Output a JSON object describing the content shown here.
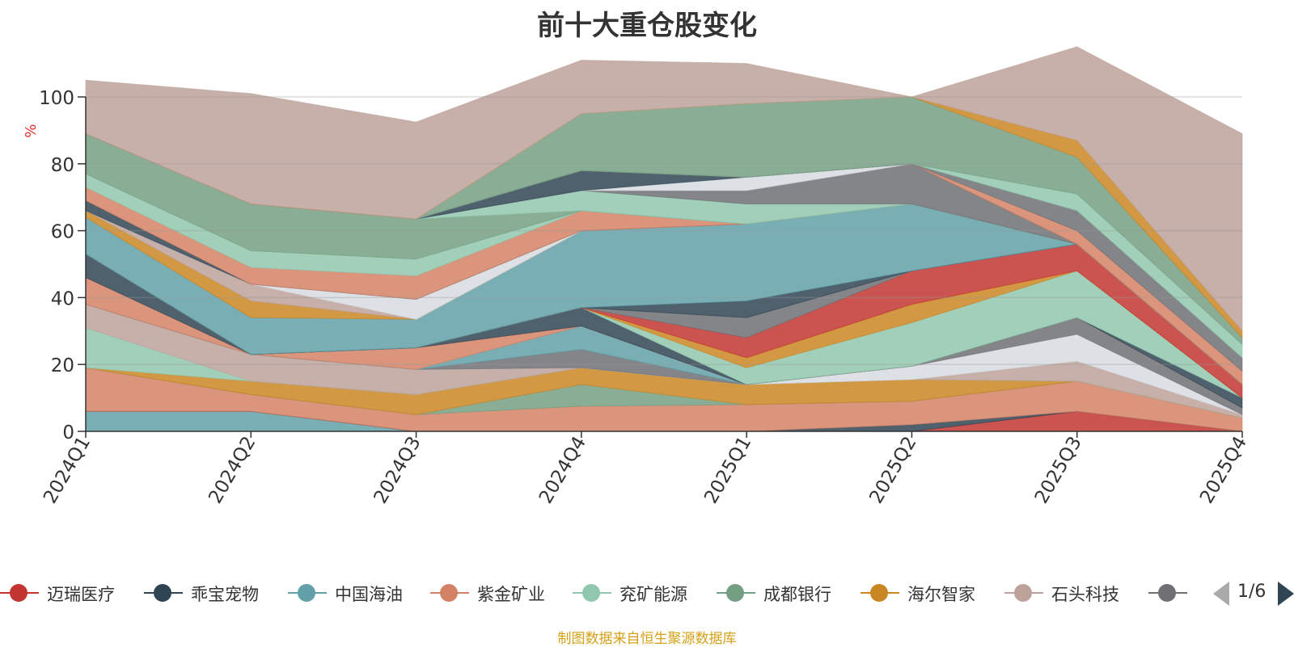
{
  "title": "前十大重仓股变化",
  "source": "制图数据来自恒生聚源数据库",
  "pager": {
    "text": "1/6"
  },
  "chart_data": {
    "type": "area",
    "stacked": true,
    "ylabel": "%",
    "ylim": [
      0,
      100
    ],
    "yticks": [
      "0",
      "20",
      "40",
      "60",
      "80",
      "100"
    ],
    "categories": [
      "2024Q1",
      "2024Q2",
      "2024Q3",
      "2024Q4",
      "2025Q1",
      "2025Q2",
      "2025Q3",
      "2025Q4"
    ],
    "legend_position": "bottom",
    "legend": [
      {
        "name": "迈瑞医疗",
        "color": "#c23531"
      },
      {
        "name": "乖宝宠物",
        "color": "#2f4554"
      },
      {
        "name": "中国海油",
        "color": "#61a0a8"
      },
      {
        "name": "紫金矿业",
        "color": "#d48265"
      },
      {
        "name": "兖矿能源",
        "color": "#91c7ae"
      },
      {
        "name": "成都银行",
        "color": "#749f83"
      },
      {
        "name": "海尔智家",
        "color": "#ca8622"
      },
      {
        "name": "石头科技",
        "color": "#bda29a"
      },
      {
        "name": "",
        "color": "#6e7074"
      }
    ],
    "layers": [
      {
        "color": "#61a0a8",
        "values": [
          6,
          6,
          0,
          0,
          0,
          0,
          0,
          0
        ]
      },
      {
        "color": "#c23531",
        "values": [
          0,
          0,
          0,
          0,
          0,
          0,
          6,
          0
        ]
      },
      {
        "color": "#2f4554",
        "values": [
          0,
          0,
          0,
          0,
          0,
          2,
          0,
          0
        ]
      },
      {
        "color": "#d48265",
        "values": [
          13,
          5,
          5,
          7.5,
          8,
          7,
          9,
          4
        ]
      },
      {
        "color": "#749f83",
        "values": [
          0,
          0,
          0,
          6.5,
          0,
          0,
          0,
          0
        ]
      },
      {
        "color": "#ca8622",
        "values": [
          0,
          4,
          6,
          5,
          6,
          6.5,
          0,
          0
        ]
      },
      {
        "color": "#91c7ae",
        "values": [
          12,
          0,
          0,
          0,
          0,
          0,
          0,
          0
        ]
      },
      {
        "color": "#bda29a",
        "values": [
          7,
          8,
          7.5,
          0,
          0,
          0,
          6,
          1
        ]
      },
      {
        "color": "#d7dce2",
        "values": [
          0,
          0,
          0,
          0,
          0,
          4,
          8,
          0
        ]
      },
      {
        "color": "#6e7074",
        "values": [
          0,
          0,
          0,
          5.5,
          0,
          0,
          5,
          2
        ]
      },
      {
        "color": "#61a0a8",
        "values": [
          0,
          0,
          0,
          7,
          0,
          0,
          0,
          0
        ]
      },
      {
        "color": "#d48265",
        "values": [
          8,
          0,
          6.5,
          0,
          0,
          0,
          0,
          0
        ]
      },
      {
        "color": "#2f4554",
        "values": [
          7,
          0,
          0,
          5.5,
          0,
          0,
          0,
          3
        ]
      },
      {
        "color": "#91c7ae",
        "values": [
          0,
          0,
          0,
          0,
          5,
          13,
          14,
          0
        ]
      },
      {
        "color": "#ca8622",
        "values": [
          0,
          0,
          0,
          0,
          3,
          5.5,
          0,
          0
        ]
      },
      {
        "color": "#c23531",
        "values": [
          0,
          0,
          0,
          0,
          6,
          10,
          8,
          4
        ]
      },
      {
        "color": "#6e7074",
        "values": [
          0,
          0,
          0,
          0,
          6,
          0,
          0,
          0
        ]
      },
      {
        "color": "#2f4554",
        "values": [
          0,
          0,
          0,
          0,
          5,
          0,
          0,
          0
        ]
      },
      {
        "color": "#61a0a8",
        "values": [
          11,
          11,
          8.5,
          23,
          23,
          20,
          0,
          0
        ]
      },
      {
        "color": "#ca8622",
        "values": [
          2,
          5,
          0,
          0,
          0,
          0,
          0,
          0
        ]
      },
      {
        "color": "#bda29a",
        "values": [
          0,
          5,
          0,
          0,
          0,
          0,
          0,
          0
        ]
      },
      {
        "color": "#d7dce2",
        "values": [
          0,
          0,
          6,
          0,
          0,
          0,
          0,
          0
        ]
      },
      {
        "color": "#2f4554",
        "values": [
          3,
          0,
          0,
          0,
          0,
          0,
          0,
          0
        ]
      },
      {
        "color": "#d48265",
        "values": [
          4,
          5,
          7,
          6,
          0,
          0,
          0,
          0
        ]
      },
      {
        "color": "#91c7ae",
        "values": [
          4,
          5,
          5,
          0,
          0,
          0,
          0,
          0
        ]
      },
      {
        "color": "#749f83",
        "values": [
          12,
          14,
          12,
          0,
          0,
          0,
          0,
          0
        ]
      },
      {
        "color": "#91c7ae",
        "values": [
          0,
          0,
          0,
          6,
          6,
          0,
          0,
          0
        ]
      },
      {
        "color": "#6e7074",
        "values": [
          0,
          0,
          0,
          0,
          4,
          12,
          0,
          0
        ]
      },
      {
        "color": "#d7dce2",
        "values": [
          0,
          0,
          0,
          0,
          4,
          0,
          0,
          0
        ]
      },
      {
        "color": "#2f4554",
        "values": [
          0,
          0,
          0,
          6,
          0,
          0,
          0,
          0
        ]
      },
      {
        "color": "#d48265",
        "values": [
          0,
          0,
          0,
          0,
          0,
          0,
          4,
          4
        ]
      },
      {
        "color": "#6e7074",
        "values": [
          0,
          0,
          0,
          0,
          0,
          0,
          6,
          4
        ]
      },
      {
        "color": "#91c7ae",
        "values": [
          0,
          0,
          0,
          0,
          0,
          0,
          5,
          4
        ]
      },
      {
        "color": "#749f83",
        "values": [
          0,
          0,
          0,
          17,
          22,
          20,
          11,
          2
        ]
      },
      {
        "color": "#ca8622",
        "values": [
          0,
          0,
          0,
          0,
          0,
          0,
          5,
          2
        ]
      },
      {
        "color": "#bda29a",
        "values": [
          16,
          33,
          29,
          16,
          12,
          0,
          28,
          59
        ]
      }
    ]
  }
}
